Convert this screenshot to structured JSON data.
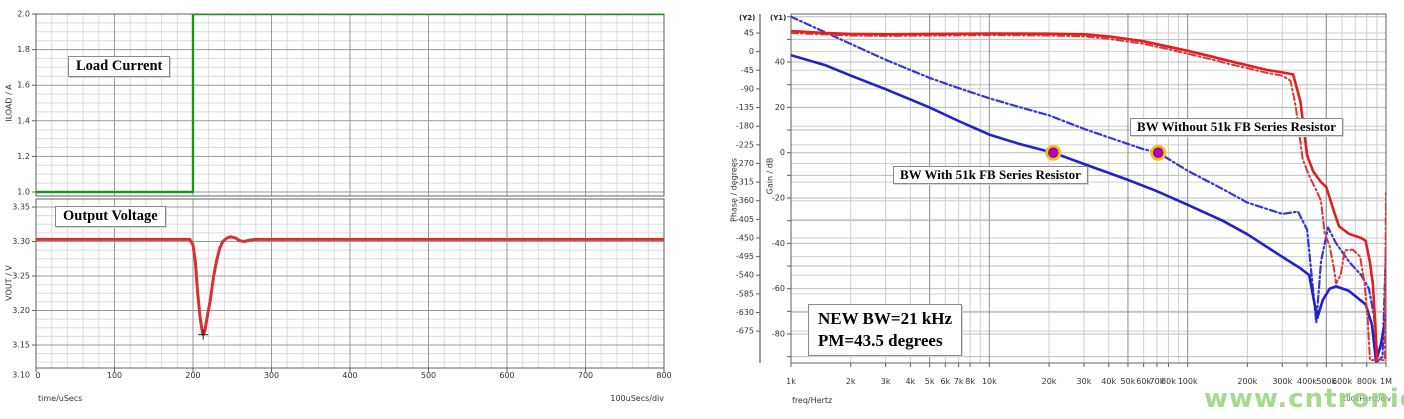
{
  "watermark": "www.cntronics.com",
  "colors": {
    "load_current": "#1b961b",
    "vout": "#d63232",
    "gain": "#2121cb",
    "gain_dash": "#3636d8",
    "phase": "#dd2020",
    "phase_dash": "#e03535",
    "marker_fill": "#b800b8",
    "marker_ring": "#f0c01a",
    "grid_minor": "#dcdcdc",
    "grid_major": "#9a9a9a",
    "grid_dark": "#8f8f8f",
    "grid_light_h": "#cfcfcf",
    "grid_gain_h": "#bdbdbd",
    "border": "#606060",
    "tick_text": "#333333",
    "cursor": "#222222"
  },
  "chart_data": [
    {
      "type": "line",
      "name": "transient-response",
      "xlabel": "time/uSecs",
      "xdiv_label": "100uSecs/div",
      "xlim": [
        0,
        800
      ],
      "xticks": [
        0,
        100,
        200,
        300,
        400,
        500,
        600,
        700,
        800
      ],
      "xtick_labels": [
        "0",
        "100",
        "200",
        "300",
        "400",
        "500",
        "600",
        "700",
        "800"
      ],
      "x_minor_step": 20,
      "panels": [
        {
          "annotation": "Load Current",
          "ylabel": "ILOAD / A",
          "ylim": [
            0.9775,
            2.0
          ],
          "ytick_values": [
            2.0,
            1.8,
            1.6,
            1.4,
            1.2,
            1.0
          ],
          "ytick_labels": [
            "2.0",
            "1.8",
            "1.6",
            "1.4",
            "1.2",
            "1.0"
          ],
          "y_minor_step": 0.05,
          "series": [
            {
              "name": "ILOAD",
              "color_key": "load_current",
              "style": "solid",
              "width": 2.4,
              "points": [
                [
                  0,
                  1.0
                ],
                [
                  200,
                  1.0
                ],
                [
                  200,
                  2.0
                ],
                [
                  800,
                  2.0
                ]
              ]
            }
          ]
        },
        {
          "annotation": "Output Voltage",
          "ylabel": "VOUT / V",
          "ylim": [
            3.1167,
            3.3616
          ],
          "ytick_values": [
            3.35,
            3.3,
            3.25,
            3.2,
            3.15,
            3.1
          ],
          "ytick_labels": [
            "3.35",
            "3.30",
            "3.25",
            "3.20",
            "3.15",
            "3.10"
          ],
          "y_minor_step": 0.0125,
          "cursor": {
            "x": 213,
            "y": 3.165
          },
          "series": [
            {
              "name": "VOUT",
              "color_key": "vout",
              "style": "solid",
              "width": 3,
              "points": [
                [
                  0,
                  3.303
                ],
                [
                  150,
                  3.303
                ],
                [
                  196,
                  3.303
                ],
                [
                  200,
                  3.295
                ],
                [
                  203,
                  3.27
                ],
                [
                  206,
                  3.225
                ],
                [
                  209,
                  3.19
                ],
                [
                  212,
                  3.168
                ],
                [
                  213,
                  3.165
                ],
                [
                  215,
                  3.17
                ],
                [
                  218,
                  3.19
                ],
                [
                  222,
                  3.215
                ],
                [
                  226,
                  3.248
                ],
                [
                  230,
                  3.272
                ],
                [
                  234,
                  3.29
                ],
                [
                  238,
                  3.3
                ],
                [
                  243,
                  3.305
                ],
                [
                  248,
                  3.307
                ],
                [
                  254,
                  3.305
                ],
                [
                  260,
                  3.301
                ],
                [
                  266,
                  3.3
                ],
                [
                  272,
                  3.302
                ],
                [
                  280,
                  3.303
                ],
                [
                  800,
                  3.303
                ]
              ]
            }
          ]
        }
      ]
    },
    {
      "type": "line",
      "name": "loop-gain-bode",
      "x_scale": "log",
      "xlabel": "freq/Hertz",
      "xdiv_label": "100kHertz/div",
      "xlim_khz": [
        1,
        1000
      ],
      "xticks": [
        {
          "v": 1,
          "label": "1k"
        },
        {
          "v": 2,
          "label": "2k"
        },
        {
          "v": 3,
          "label": "3k"
        },
        {
          "v": 4,
          "label": "4k"
        },
        {
          "v": 5,
          "label": "5k"
        },
        {
          "v": 6,
          "label": "6k"
        },
        {
          "v": 7,
          "label": "7k"
        },
        {
          "v": 8,
          "label": "8k"
        },
        {
          "v": 10,
          "label": "10k"
        },
        {
          "v": 20,
          "label": "20k"
        },
        {
          "v": 30,
          "label": "30k"
        },
        {
          "v": 40,
          "label": "40k"
        },
        {
          "v": 50,
          "label": "50k"
        },
        {
          "v": 60,
          "label": "60k"
        },
        {
          "v": 70,
          "label": "70k"
        },
        {
          "v": 80,
          "label": "80k"
        },
        {
          "v": 100,
          "label": "100k"
        },
        {
          "v": 200,
          "label": "200k"
        },
        {
          "v": 300,
          "label": "300k"
        },
        {
          "v": 400,
          "label": "400k"
        },
        {
          "v": 500,
          "label": "500k"
        },
        {
          "v": 600,
          "label": "600k"
        },
        {
          "v": 800,
          "label": "800k"
        },
        {
          "v": 1000,
          "label": "1M"
        }
      ],
      "y_axes": [
        {
          "tag": "(Y2)",
          "title": "Phase / degrees",
          "ylim": [
            -752,
            91
          ],
          "ticks": [
            45,
            0,
            -45,
            -90,
            -135,
            -180,
            -225,
            -270,
            -315,
            -360,
            -405,
            -450,
            -495,
            -540,
            -585,
            -630,
            -675
          ]
        },
        {
          "tag": "(Y1)",
          "title": "Gain / dB",
          "ylim": [
            -92.8,
            61.2
          ],
          "tick_labels": [
            40,
            20,
            0,
            -20,
            -40,
            -60,
            -80
          ],
          "grid_step": 10
        }
      ],
      "annotations": [
        {
          "text": "BW With 51k FB Series Resistor"
        },
        {
          "text": "BW Without 51k FB Series Resistor"
        },
        {
          "lines": [
            "NEW BW=21 kHz",
            "PM=43.5 degrees"
          ]
        }
      ],
      "markers": [
        {
          "f_khz": 21,
          "gain_db": 0,
          "meaning": "BW with 51k FB series resistor"
        },
        {
          "f_khz": 71,
          "gain_db": 0,
          "meaning": "BW without 51k FB series resistor"
        }
      ],
      "series": [
        {
          "name": "Gain without 51k FB series resistor",
          "axis": 1,
          "style": "dashdot",
          "color_key": "gain_dash",
          "width": 2.2,
          "points": [
            [
              1,
              60
            ],
            [
              1.5,
              53
            ],
            [
              2,
              48
            ],
            [
              3,
              41
            ],
            [
              5,
              33
            ],
            [
              7,
              28.5
            ],
            [
              10,
              24
            ],
            [
              15,
              19.5
            ],
            [
              20,
              16.5
            ],
            [
              30,
              10.5
            ],
            [
              44,
              5.5
            ],
            [
              60,
              1.5
            ],
            [
              71,
              0
            ],
            [
              100,
              -8
            ],
            [
              150,
              -16
            ],
            [
              200,
              -22
            ],
            [
              300,
              -27
            ],
            [
              360,
              -26
            ],
            [
              400,
              -34
            ],
            [
              445,
              -75
            ],
            [
              470,
              -48
            ],
            [
              510,
              -33
            ],
            [
              560,
              -40
            ],
            [
              650,
              -48
            ],
            [
              750,
              -54
            ],
            [
              820,
              -60
            ],
            [
              870,
              -72
            ],
            [
              910,
              -92
            ],
            [
              960,
              -90
            ],
            [
              1000,
              -42
            ]
          ]
        },
        {
          "name": "Gain with 51k FB series resistor",
          "axis": 1,
          "style": "solid",
          "color_key": "gain",
          "width": 2.6,
          "points": [
            [
              1,
              43
            ],
            [
              1.5,
              38.5
            ],
            [
              2,
              34
            ],
            [
              3,
              28
            ],
            [
              4,
              23.5
            ],
            [
              5,
              20
            ],
            [
              7,
              14
            ],
            [
              10,
              8
            ],
            [
              14,
              4
            ],
            [
              21,
              0
            ],
            [
              30,
              -5
            ],
            [
              50,
              -12
            ],
            [
              70,
              -17
            ],
            [
              100,
              -23
            ],
            [
              150,
              -30
            ],
            [
              200,
              -36
            ],
            [
              300,
              -46
            ],
            [
              370,
              -51
            ],
            [
              410,
              -54
            ],
            [
              450,
              -73
            ],
            [
              480,
              -65
            ],
            [
              520,
              -60
            ],
            [
              560,
              -59
            ],
            [
              650,
              -61
            ],
            [
              790,
              -67
            ],
            [
              850,
              -76
            ],
            [
              890,
              -92
            ],
            [
              940,
              -85
            ],
            [
              1000,
              -72
            ]
          ]
        },
        {
          "name": "Phase without 51k FB series resistor",
          "axis": 0,
          "style": "dashdot",
          "color_key": "phase_dash",
          "width": 2,
          "points": [
            [
              1,
              45
            ],
            [
              2,
              39
            ],
            [
              3,
              38
            ],
            [
              5,
              39
            ],
            [
              10,
              40
            ],
            [
              20,
              39
            ],
            [
              30,
              37
            ],
            [
              40,
              31
            ],
            [
              60,
              19
            ],
            [
              80,
              6
            ],
            [
              100,
              -5
            ],
            [
              130,
              -18
            ],
            [
              160,
              -29
            ],
            [
              200,
              -40
            ],
            [
              250,
              -51
            ],
            [
              300,
              -58
            ],
            [
              330,
              -70
            ],
            [
              350,
              -130
            ],
            [
              380,
              -260
            ],
            [
              410,
              -300
            ],
            [
              440,
              -330
            ],
            [
              470,
              -360
            ],
            [
              490,
              -438
            ],
            [
              520,
              -470
            ],
            [
              545,
              -520
            ],
            [
              560,
              -560
            ],
            [
              590,
              -540
            ],
            [
              620,
              -480
            ],
            [
              680,
              -478
            ],
            [
              740,
              -495
            ],
            [
              780,
              -560
            ],
            [
              810,
              -650
            ],
            [
              830,
              -745
            ],
            [
              985,
              -745
            ],
            [
              1000,
              -340
            ]
          ]
        },
        {
          "name": "Phase with 51k FB series resistor",
          "axis": 0,
          "style": "solid",
          "color_key": "phase",
          "width": 2.6,
          "points": [
            [
              1,
              50
            ],
            [
              1.5,
              45
            ],
            [
              2,
              43
            ],
            [
              3,
              42
            ],
            [
              5,
              43
            ],
            [
              10,
              44
            ],
            [
              20,
              43.5
            ],
            [
              30,
              42
            ],
            [
              40,
              37
            ],
            [
              60,
              25
            ],
            [
              80,
              12
            ],
            [
              100,
              2
            ],
            [
              130,
              -11
            ],
            [
              160,
              -22
            ],
            [
              200,
              -33
            ],
            [
              250,
              -44
            ],
            [
              300,
              -50
            ],
            [
              340,
              -55
            ],
            [
              370,
              -120
            ],
            [
              400,
              -250
            ],
            [
              430,
              -290
            ],
            [
              470,
              -315
            ],
            [
              500,
              -327
            ],
            [
              550,
              -390
            ],
            [
              580,
              -422
            ],
            [
              650,
              -440
            ],
            [
              750,
              -450
            ],
            [
              790,
              -457
            ],
            [
              830,
              -510
            ],
            [
              860,
              -564
            ],
            [
              880,
              -650
            ],
            [
              900,
              -740
            ]
          ]
        }
      ]
    }
  ]
}
